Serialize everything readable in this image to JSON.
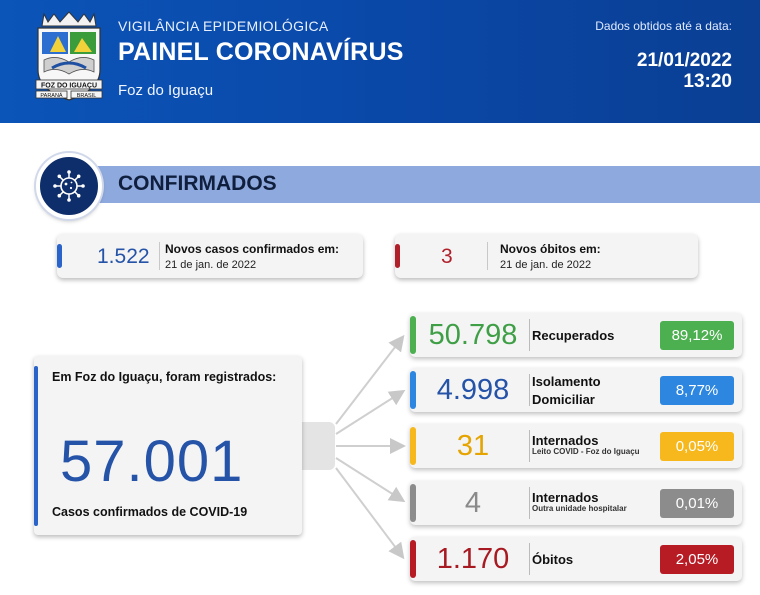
{
  "header": {
    "kicker": "VIGILÂNCIA EPIDEMIOLÓGICA",
    "title": "PAINEL CORONAVÍRUS",
    "city": "Foz do Iguaçu",
    "date_label": "Dados obtidos até a data:",
    "date": "21/01/2022",
    "time": "13:20",
    "crest": {
      "banner": "FOZ DO IGUAÇU",
      "left": "PARANÁ",
      "right": "BRASIL"
    }
  },
  "section": {
    "title": "CONFIRMADOS",
    "icon": "virus-icon"
  },
  "new_cases": {
    "value": "1.522",
    "label": "Novos casos confirmados em:",
    "date": "21 de jan. de 2022",
    "color": "#2a63c9"
  },
  "new_deaths": {
    "value": "3",
    "label": "Novos óbitos em:",
    "date": "21 de jan. de 2022",
    "color": "#b0202b"
  },
  "total": {
    "intro": "Em Foz do Iguaçu, foram registrados:",
    "value": "57.001",
    "footer": "Casos confirmados de COVID-19"
  },
  "breakdown": [
    {
      "value": "50.798",
      "label": "Recuperados",
      "sub": "",
      "percent": "89,12%",
      "color": "#4caf50",
      "value_color": "#3f9f46"
    },
    {
      "value": "4.998",
      "label": "Isolamento",
      "label2": "Domiciliar",
      "sub": "",
      "percent": "8,77%",
      "color": "#2d86e0",
      "value_color": "#2553a8"
    },
    {
      "value": "31",
      "label": "Internados",
      "sub": "Leito COVID - Foz do Iguaçu",
      "percent": "0,05%",
      "color": "#f6b81c",
      "value_color": "#e5a400"
    },
    {
      "value": "4",
      "label": "Internados",
      "sub": "Outra unidade hospitalar",
      "percent": "0,01%",
      "color": "#8c8c8c",
      "value_color": "#8a8a8a"
    },
    {
      "value": "1.170",
      "label": "Óbitos",
      "sub": "",
      "percent": "2,05%",
      "color": "#b71c25",
      "value_color": "#a81a22"
    }
  ]
}
